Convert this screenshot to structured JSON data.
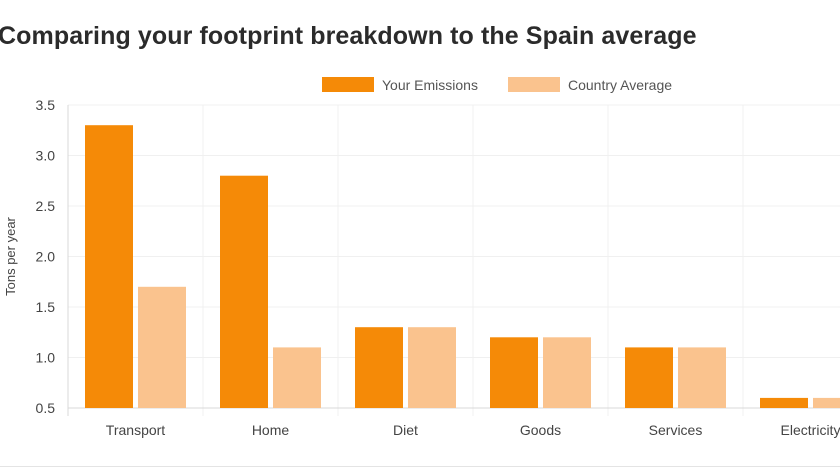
{
  "chart_data": {
    "type": "bar",
    "title": "Comparing your footprint breakdown to the Spain average",
    "xlabel": "",
    "ylabel": "Tons per year",
    "categories": [
      "Transport",
      "Home",
      "Diet",
      "Goods",
      "Services",
      "Electricity"
    ],
    "series": [
      {
        "name": "Your Emissions",
        "color": "#F58A07",
        "values": [
          3.3,
          2.8,
          1.3,
          1.2,
          1.1,
          0.6
        ]
      },
      {
        "name": "Country Average",
        "color": "#FAC38E",
        "values": [
          1.7,
          1.1,
          1.3,
          1.2,
          1.1,
          0.6
        ]
      }
    ],
    "ylim": [
      0.5,
      3.5
    ],
    "yticks": [
      "0.5",
      "1.0",
      "1.5",
      "2.0",
      "2.5",
      "3.0",
      "3.5"
    ],
    "grid": true,
    "legend_position": "top-center"
  }
}
